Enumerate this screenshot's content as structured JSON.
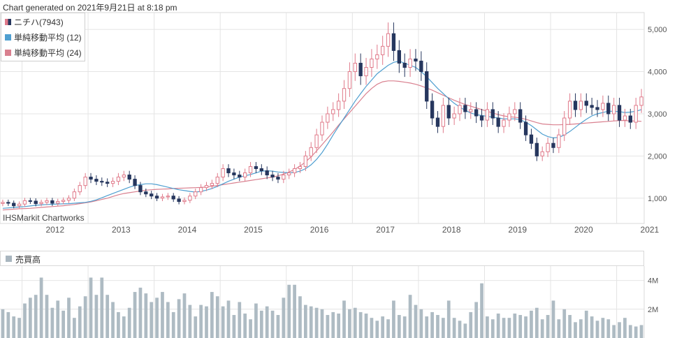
{
  "header": {
    "generated": "Chart generated on 2021年9月21日 at 8:18 pm"
  },
  "legend": [
    {
      "label": "ニチハ(7943)",
      "color": "#e07a8a"
    },
    {
      "label": "単純移動平均 (12)",
      "color": "#4f9fd0"
    },
    {
      "label": "単純移動平均 (24)",
      "color": "#d9808f"
    }
  ],
  "credit": "IHSMarkit Chartworks",
  "volume_title": "売買高",
  "colors": {
    "up": "#e07a8a",
    "down": "#26375e",
    "ma12": "#4f9fd0",
    "ma24": "#d9808f",
    "volume": "#aebbc3",
    "grid": "#e4e4e4"
  },
  "chart_data": [
    {
      "type": "candlestick",
      "x_ticks": [
        "2012",
        "2013",
        "2014",
        "2015",
        "2016",
        "2017",
        "2018",
        "2019",
        "2020",
        "2021"
      ],
      "y_ticks": [
        "1,000",
        "2,000",
        "3,000",
        "4,000",
        "5,000"
      ],
      "ylim": [
        400,
        5400
      ],
      "start": "2011-09",
      "interval": "month",
      "close": [
        900,
        880,
        820,
        860,
        940,
        930,
        870,
        900,
        940,
        880,
        920,
        950,
        1000,
        1150,
        1300,
        1500,
        1450,
        1400,
        1380,
        1350,
        1400,
        1500,
        1550,
        1450,
        1300,
        1150,
        1100,
        1050,
        1000,
        1030,
        1050,
        980,
        920,
        950,
        1050,
        1150,
        1250,
        1300,
        1350,
        1500,
        1700,
        1600,
        1550,
        1500,
        1600,
        1750,
        1700,
        1650,
        1550,
        1500,
        1450,
        1550,
        1600,
        1700,
        1750,
        2000,
        2200,
        2500,
        2800,
        3000,
        3100,
        3300,
        3600,
        4000,
        4200,
        3900,
        4100,
        4300,
        4400,
        4600,
        4900,
        4500,
        4200,
        4100,
        4300,
        4250,
        4000,
        3300,
        2900,
        2700,
        3200,
        2900,
        3000,
        3200,
        3050,
        3100,
        2950,
        2850,
        3100,
        2900,
        2700,
        2850,
        3000,
        3100,
        2800,
        2500,
        2300,
        2000,
        2100,
        2300,
        2200,
        2500,
        2900,
        3300,
        3100,
        3300,
        3200,
        3150,
        3100,
        3250,
        3000,
        3200,
        2850,
        2950,
        2800,
        3200,
        3400
      ],
      "ma12": [
        760,
        770,
        780,
        790,
        800,
        815,
        830,
        840,
        850,
        855,
        860,
        865,
        870,
        880,
        890,
        900,
        925,
        960,
        1010,
        1060,
        1110,
        1160,
        1210,
        1260,
        1300,
        1320,
        1340,
        1340,
        1320,
        1290,
        1260,
        1230,
        1200,
        1180,
        1160,
        1145,
        1160,
        1190,
        1230,
        1280,
        1340,
        1400,
        1450,
        1500,
        1530,
        1560,
        1600,
        1640,
        1650,
        1640,
        1620,
        1610,
        1600,
        1610,
        1640,
        1700,
        1790,
        1920,
        2080,
        2280,
        2500,
        2700,
        2900,
        3100,
        3300,
        3480,
        3650,
        3800,
        3950,
        4050,
        4150,
        4220,
        4250,
        4200,
        4150,
        4100,
        4000,
        3880,
        3740,
        3600,
        3480,
        3360,
        3250,
        3160,
        3080,
        3020,
        2980,
        2960,
        2940,
        2920,
        2900,
        2880,
        2880,
        2880,
        2860,
        2800,
        2720,
        2620,
        2520,
        2460,
        2430,
        2440,
        2500,
        2580,
        2680,
        2780,
        2870,
        2950,
        3000,
        3030,
        3060,
        3060,
        3050,
        3030,
        3040,
        3060,
        3100
      ],
      "ma24": [
        720,
        730,
        740,
        750,
        755,
        760,
        770,
        780,
        790,
        800,
        810,
        820,
        835,
        850,
        870,
        890,
        910,
        940,
        970,
        1000,
        1040,
        1080,
        1110,
        1130,
        1150,
        1170,
        1190,
        1200,
        1210,
        1215,
        1220,
        1230,
        1235,
        1240,
        1245,
        1250,
        1255,
        1265,
        1280,
        1300,
        1320,
        1340,
        1360,
        1380,
        1400,
        1420,
        1440,
        1460,
        1480,
        1500,
        1530,
        1570,
        1620,
        1680,
        1760,
        1860,
        1980,
        2120,
        2270,
        2420,
        2570,
        2730,
        2880,
        3030,
        3180,
        3330,
        3480,
        3600,
        3700,
        3760,
        3780,
        3780,
        3770,
        3750,
        3730,
        3700,
        3660,
        3610,
        3560,
        3500,
        3440,
        3380,
        3320,
        3270,
        3220,
        3180,
        3140,
        3100,
        3060,
        3020,
        2980,
        2950,
        2930,
        2920,
        2900,
        2870,
        2830,
        2790,
        2760,
        2750,
        2740,
        2740,
        2745,
        2750,
        2760,
        2770,
        2780,
        2790,
        2800,
        2810,
        2820,
        2830,
        2840,
        2840,
        2830,
        2830,
        2820
      ]
    },
    {
      "type": "bar",
      "series_name": "売買高",
      "y_ticks": [
        "2M",
        "4M"
      ],
      "ylim": [
        0,
        5000000
      ],
      "values": [
        2000000,
        1800000,
        1500000,
        1400000,
        2400000,
        2800000,
        3000000,
        4200000,
        3000000,
        2100000,
        2600000,
        1900000,
        2800000,
        1400000,
        2200000,
        2900000,
        4200000,
        3000000,
        4200000,
        3000000,
        2500000,
        1800000,
        1500000,
        2100000,
        3200000,
        3500000,
        3100000,
        2500000,
        2800000,
        3200000,
        2500000,
        1800000,
        2700000,
        3100000,
        2300000,
        1500000,
        2300000,
        2200000,
        3200000,
        2900000,
        2200000,
        2600000,
        1600000,
        2500000,
        1700000,
        1300000,
        2400000,
        1900000,
        2200000,
        1900000,
        1600000,
        2800000,
        3700000,
        3700000,
        2900000,
        2300000,
        2200000,
        2100000,
        2000000,
        1600000,
        1800000,
        1700000,
        2600000,
        2000000,
        2100000,
        1800000,
        1700000,
        1400000,
        1200000,
        1500000,
        1300000,
        2600000,
        1600000,
        1500000,
        3000000,
        2300000,
        2000000,
        1500000,
        1800000,
        1600000,
        1400000,
        2600000,
        1400000,
        1200000,
        1000000,
        1800000,
        2500000,
        3800000,
        1500000,
        1300000,
        1700000,
        1400000,
        1400000,
        1700000,
        1600000,
        1500000,
        1900000,
        2100000,
        1300000,
        1600000,
        2600000,
        1300000,
        2000000,
        1600000,
        1100000,
        1300000,
        1900000,
        1500000,
        1200000,
        1400000,
        1300000,
        900000,
        1100000,
        1400000,
        900000,
        800000,
        900000
      ]
    }
  ]
}
